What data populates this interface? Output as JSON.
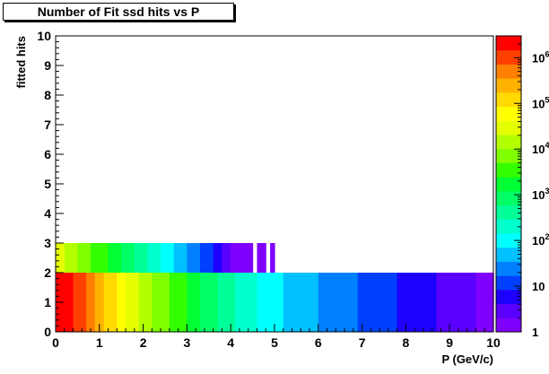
{
  "chart_data": {
    "type": "heatmap",
    "title": "Number of Fit ssd hits vs P",
    "xlabel": "P (GeV/c)",
    "ylabel": "fitted hits",
    "xlim": [
      0,
      10
    ],
    "ylim": [
      0,
      10
    ],
    "x_ticks": [
      "0",
      "1",
      "2",
      "3",
      "4",
      "5",
      "6",
      "7",
      "8",
      "9",
      "10"
    ],
    "y_ticks": [
      "0",
      "1",
      "2",
      "3",
      "4",
      "5",
      "6",
      "7",
      "8",
      "9",
      "10"
    ],
    "x_bin_width": 0.1,
    "color_scale": {
      "type": "log",
      "range": [
        1,
        3000000
      ],
      "tick_labels": [
        {
          "base": "1",
          "exp": ""
        },
        {
          "base": "10",
          "exp": ""
        },
        {
          "base": "10",
          "exp": "2"
        },
        {
          "base": "10",
          "exp": "3"
        },
        {
          "base": "10",
          "exp": "4"
        },
        {
          "base": "10",
          "exp": "5"
        },
        {
          "base": "10",
          "exp": "6"
        }
      ],
      "tick_values": [
        1,
        10,
        100,
        1000,
        10000,
        100000,
        1000000
      ],
      "palette": [
        "#8000ff",
        "#5a00ff",
        "#1e00ff",
        "#0040ff",
        "#0080ff",
        "#00c0ff",
        "#00ffff",
        "#00ffcc",
        "#00ff99",
        "#00ff66",
        "#00ff33",
        "#33ff00",
        "#80ff00",
        "#b3ff00",
        "#e6ff00",
        "#ffff00",
        "#ffd900",
        "#ffb300",
        "#ff8000",
        "#ff4000",
        "#ff0000"
      ]
    },
    "rows": [
      {
        "y_range": [
          0,
          2
        ],
        "x_start": 0.1,
        "log_counts": [
          6.3,
          6.3,
          6.3,
          6.2,
          6.1,
          6.0,
          5.9,
          5.8,
          5.6,
          5.4,
          5.3,
          5.2,
          5.1,
          5.0,
          4.8,
          4.7,
          4.6,
          4.5,
          4.4,
          4.3,
          4.2,
          4.1,
          4.0,
          3.9,
          3.85,
          3.8,
          3.7,
          3.6,
          3.5,
          3.4,
          3.3,
          3.2,
          3.1,
          3.0,
          3.0,
          2.9,
          2.8,
          2.7,
          2.6,
          2.5,
          2.5,
          2.4,
          2.4,
          2.3,
          2.2,
          2.2,
          2.1,
          2.1,
          2.0,
          2.0,
          1.9,
          1.9,
          1.8,
          1.8,
          1.75,
          1.7,
          1.7,
          1.6,
          1.6,
          1.55,
          1.5,
          1.5,
          1.45,
          1.4,
          1.4,
          1.35,
          1.3,
          1.3,
          1.25,
          1.2,
          1.2,
          1.15,
          1.1,
          1.1,
          1.05,
          1.0,
          1.0,
          0.95,
          0.9,
          0.9,
          0.85,
          0.8,
          0.8,
          0.75,
          0.7,
          0.7,
          0.65,
          0.6,
          0.6,
          0.55,
          0.5,
          0.5,
          0.45,
          0.4,
          0.4,
          0.35,
          0.3,
          0.3,
          0.25,
          0.2
        ]
      },
      {
        "y_range": [
          1,
          2
        ],
        "x_start": 0.1,
        "log_counts": [
          6.3,
          6.3,
          6.3,
          6.2,
          6.1,
          6.0,
          5.9,
          5.8,
          5.6,
          5.4,
          5.3,
          5.2,
          5.1,
          5.0,
          4.8,
          4.7,
          4.6,
          4.5,
          4.4,
          4.3,
          4.2,
          4.1,
          4.0,
          3.9,
          3.85,
          3.8,
          3.7,
          3.6,
          3.5,
          3.4,
          3.3,
          3.2,
          3.1,
          3.0,
          3.0,
          2.9,
          2.8,
          2.7,
          2.6,
          2.5,
          2.5,
          2.4,
          2.4,
          2.3,
          2.2,
          2.2,
          2.1,
          2.1,
          2.0,
          2.0,
          1.9,
          1.9,
          1.8,
          1.8,
          1.75,
          1.7,
          1.7,
          1.6,
          1.6,
          1.55,
          1.5,
          1.5,
          1.45,
          1.4,
          1.4,
          1.35,
          1.3,
          1.3,
          1.25,
          1.2,
          1.2,
          1.15,
          1.1,
          1.1,
          1.05,
          1.0,
          1.0,
          0.95,
          0.9,
          0.9,
          0.85,
          0.8,
          0.8,
          0.75,
          0.7,
          0.7,
          0.65,
          0.6,
          0.6,
          0.55,
          0.5,
          0.5,
          0.45,
          0.4,
          0.4,
          0.35,
          0.3,
          0.3,
          0.25,
          0.2
        ]
      },
      {
        "y_range": [
          2,
          3
        ],
        "x_start": 0.1,
        "log_counts": [
          4.6,
          4.4,
          4.3,
          4.2,
          4.1,
          4.0,
          3.9,
          3.8,
          3.7,
          3.6,
          3.5,
          3.4,
          3.3,
          3.2,
          3.1,
          3.0,
          2.9,
          2.8,
          2.7,
          2.6,
          2.5,
          2.4,
          2.3,
          2.2,
          2.1,
          2.0,
          1.9,
          1.8,
          1.7,
          1.6,
          1.5,
          1.4,
          1.3,
          1.2,
          1.1,
          1.0,
          0.9,
          0.8,
          0.6,
          0.4,
          0.3,
          0.2,
          0.1,
          0.05,
          0.0,
          0.0,
          0.2,
          0.2,
          0.0,
          0.1,
          0.0,
          0.0,
          0.0,
          0.0,
          0.0,
          0.0,
          0.0,
          0.0,
          0.0,
          0.0,
          0.0,
          0.0,
          0.0,
          0.0,
          0.0,
          0.0,
          0.0,
          0.0,
          0.0,
          0.0,
          0.0,
          0.0,
          0.0,
          0.0,
          0.0,
          0.0,
          0.0,
          0.0,
          0.0,
          0.0,
          0.0,
          0.0,
          0.0,
          0.0,
          0.0,
          0.0,
          0.0,
          0.0,
          0.0,
          0.0,
          0.0,
          0.0,
          0.0,
          0.0,
          0.0,
          0.0,
          0.0,
          0.0,
          0.0,
          0.0
        ]
      }
    ]
  }
}
